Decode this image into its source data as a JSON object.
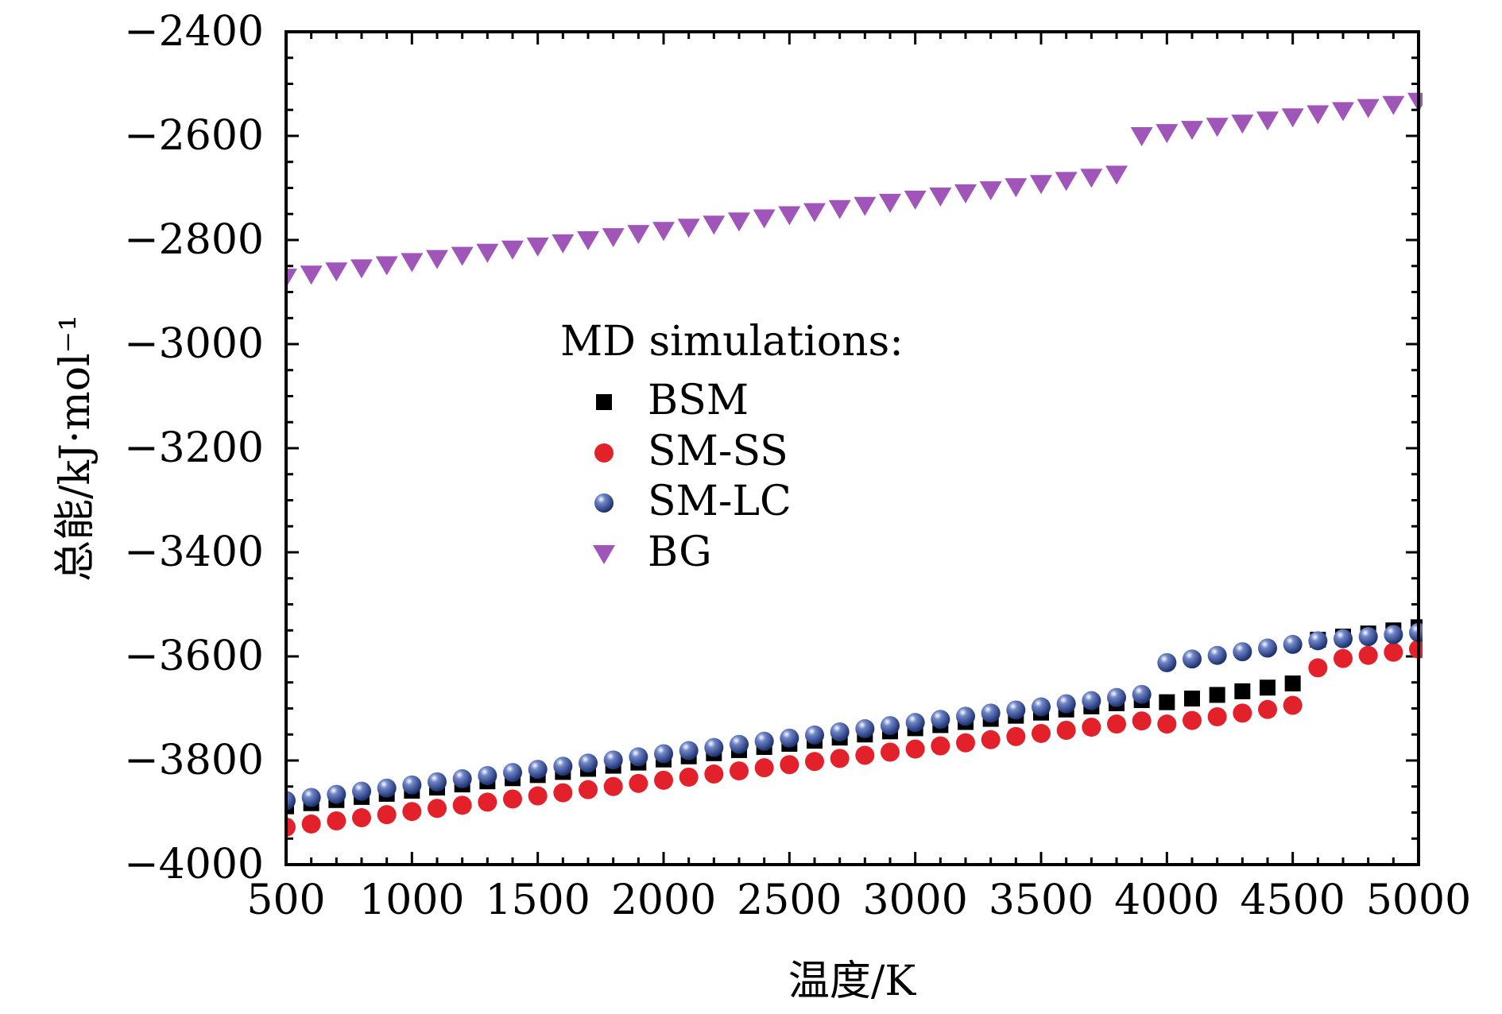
{
  "chart_data": {
    "type": "scatter",
    "title": "",
    "xlabel": "温度/K",
    "ylabel": "总能/kJ·mol⁻¹",
    "xlim": [
      500,
      5000
    ],
    "ylim": [
      -4000,
      -2400
    ],
    "x_ticks": [
      500,
      1000,
      1500,
      2000,
      2500,
      3000,
      3500,
      4000,
      4500,
      5000
    ],
    "y_ticks": [
      -2400,
      -2600,
      -2800,
      -3000,
      -3200,
      -3400,
      -3600,
      -3800,
      -4000
    ],
    "y_tick_labels": [
      "−2400",
      "−2600",
      "−2800",
      "−3000",
      "−3200",
      "−3400",
      "−3600",
      "−3800",
      "−4000"
    ],
    "legend": {
      "title": "MD simulations:",
      "placement": "center"
    },
    "series": [
      {
        "name": "BSM",
        "marker": "square",
        "color": "#000000",
        "x": [
          500,
          600,
          700,
          800,
          900,
          1000,
          1100,
          1200,
          1300,
          1400,
          1500,
          1600,
          1700,
          1800,
          1900,
          2000,
          2100,
          2200,
          2300,
          2400,
          2500,
          2600,
          2700,
          2800,
          2900,
          3000,
          3100,
          3200,
          3300,
          3400,
          3500,
          3600,
          3700,
          3800,
          3900,
          4000,
          4100,
          4200,
          4300,
          4400,
          4500,
          4600,
          4700,
          4800,
          4900,
          5000
        ],
        "y": [
          -3888,
          -3882,
          -3876,
          -3870,
          -3864,
          -3858,
          -3852,
          -3846,
          -3840,
          -3834,
          -3828,
          -3822,
          -3816,
          -3810,
          -3804,
          -3798,
          -3792,
          -3786,
          -3780,
          -3774,
          -3768,
          -3762,
          -3756,
          -3750,
          -3744,
          -3738,
          -3732,
          -3726,
          -3720,
          -3714,
          -3708,
          -3702,
          -3696,
          -3690,
          -3684,
          -3688,
          -3681,
          -3674,
          -3667,
          -3660,
          -3652,
          -3568,
          -3562,
          -3556,
          -3550,
          -3544
        ]
      },
      {
        "name": "SM-SS",
        "marker": "circle",
        "color": "#e3212b",
        "x": [
          500,
          600,
          700,
          800,
          900,
          1000,
          1100,
          1200,
          1300,
          1400,
          1500,
          1600,
          1700,
          1800,
          1900,
          2000,
          2100,
          2200,
          2300,
          2400,
          2500,
          2600,
          2700,
          2800,
          2900,
          3000,
          3100,
          3200,
          3300,
          3400,
          3500,
          3600,
          3700,
          3800,
          3900,
          4000,
          4100,
          4200,
          4300,
          4400,
          4500,
          4600,
          4700,
          4800,
          4900,
          5000
        ],
        "y": [
          -3928,
          -3922,
          -3916,
          -3910,
          -3904,
          -3898,
          -3892,
          -3886,
          -3880,
          -3874,
          -3868,
          -3862,
          -3856,
          -3850,
          -3844,
          -3838,
          -3832,
          -3826,
          -3820,
          -3814,
          -3808,
          -3802,
          -3796,
          -3790,
          -3784,
          -3778,
          -3772,
          -3766,
          -3760,
          -3754,
          -3748,
          -3742,
          -3736,
          -3730,
          -3724,
          -3730,
          -3723,
          -3716,
          -3709,
          -3702,
          -3694,
          -3622,
          -3604,
          -3598,
          -3592,
          -3586
        ]
      },
      {
        "name": "SM-LC",
        "marker": "sphere",
        "color": "#2c4a9c",
        "x": [
          500,
          600,
          700,
          800,
          900,
          1000,
          1100,
          1200,
          1300,
          1400,
          1500,
          1600,
          1700,
          1800,
          1900,
          2000,
          2100,
          2200,
          2300,
          2400,
          2500,
          2600,
          2700,
          2800,
          2900,
          3000,
          3100,
          3200,
          3300,
          3400,
          3500,
          3600,
          3700,
          3800,
          3900,
          4000,
          4100,
          4200,
          4300,
          4400,
          4500,
          4600,
          4700,
          4800,
          4900,
          5000
        ],
        "y": [
          -3877,
          -3871,
          -3865,
          -3859,
          -3853,
          -3847,
          -3841,
          -3835,
          -3829,
          -3823,
          -3817,
          -3811,
          -3805,
          -3799,
          -3793,
          -3787,
          -3781,
          -3775,
          -3769,
          -3763,
          -3757,
          -3751,
          -3745,
          -3739,
          -3733,
          -3727,
          -3721,
          -3715,
          -3709,
          -3703,
          -3697,
          -3691,
          -3685,
          -3679,
          -3673,
          -3612,
          -3605,
          -3598,
          -3591,
          -3584,
          -3577,
          -3570,
          -3566,
          -3562,
          -3558,
          -3554
        ]
      },
      {
        "name": "BG",
        "marker": "triangle-down",
        "color": "#a055b8",
        "x": [
          500,
          600,
          700,
          800,
          900,
          1000,
          1100,
          1200,
          1300,
          1400,
          1500,
          1600,
          1700,
          1800,
          1900,
          2000,
          2100,
          2200,
          2300,
          2400,
          2500,
          2600,
          2700,
          2800,
          2900,
          3000,
          3100,
          3200,
          3300,
          3400,
          3500,
          3600,
          3700,
          3800,
          3900,
          4000,
          4100,
          4200,
          4300,
          4400,
          4500,
          4600,
          4700,
          4800,
          4900,
          5000
        ],
        "y": [
          -2872,
          -2866,
          -2860,
          -2854,
          -2848,
          -2842,
          -2836,
          -2830,
          -2824,
          -2818,
          -2812,
          -2806,
          -2800,
          -2794,
          -2788,
          -2782,
          -2776,
          -2770,
          -2764,
          -2758,
          -2752,
          -2746,
          -2740,
          -2734,
          -2728,
          -2722,
          -2716,
          -2710,
          -2704,
          -2698,
          -2692,
          -2686,
          -2680,
          -2674,
          -2600,
          -2594,
          -2588,
          -2582,
          -2576,
          -2570,
          -2564,
          -2558,
          -2552,
          -2546,
          -2540,
          -2534
        ]
      }
    ]
  }
}
